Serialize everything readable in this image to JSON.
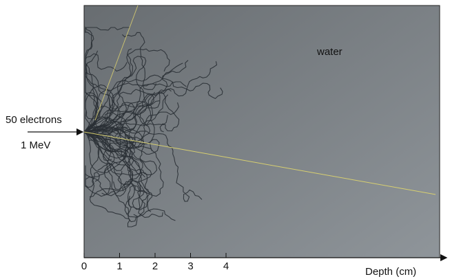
{
  "annotations": {
    "beam": [
      "50 electrons",
      "1 MeV"
    ],
    "medium": "water"
  },
  "axis": {
    "label": "Depth (cm)",
    "ticks": [
      "0",
      "1",
      "2",
      "3",
      "4"
    ]
  }
}
